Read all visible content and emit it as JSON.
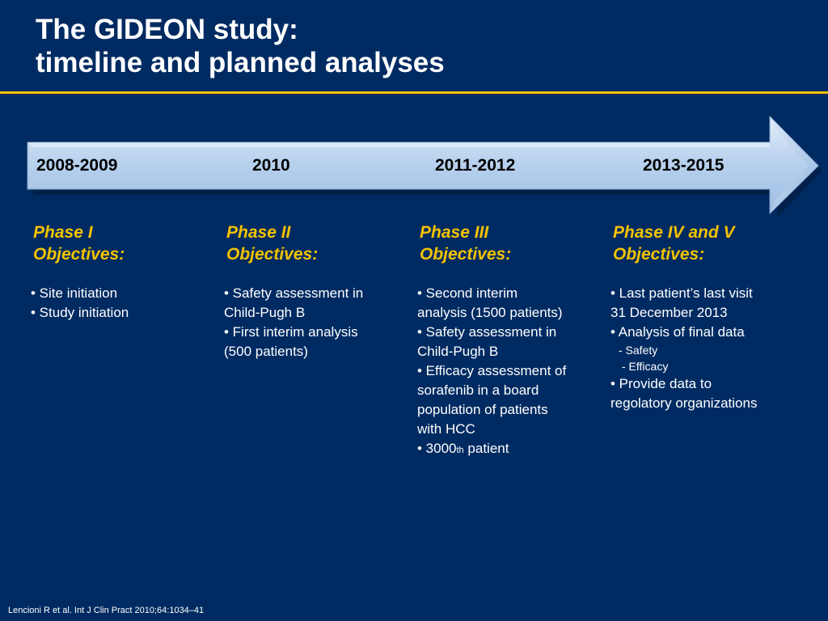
{
  "slide": {
    "title_line1": "The GIDEON study:",
    "title_line2": "timeline and planned analyses",
    "reference": "Lencioni R et al. Int J Clin Pract 2010;64:1034–41"
  },
  "timeline": {
    "years": [
      "2008-2009",
      "2010",
      "2011-2012",
      "2013-2015"
    ]
  },
  "phases": [
    {
      "name": "Phase I",
      "objectives_label": "Objectives:",
      "items": [
        "• Site initiation",
        "• Study initiation"
      ]
    },
    {
      "name": "Phase II",
      "objectives_label": "Objectives:",
      "items": [
        "• Safety assessment in",
        "Child-Pugh B",
        "• First interim analysis",
        "(500 patients)"
      ]
    },
    {
      "name": "Phase III",
      "objectives_label": "Objectives:",
      "items": [
        "• Second interim",
        "analysis (1500 patients)",
        "• Safety assessment in",
        "Child-Pugh B",
        "• Efficacy assessment of",
        "sorafenib in a board",
        "population of patients",
        "with HCC"
      ],
      "last_item_prefix": "• 3000",
      "last_item_sup": "th",
      "last_item_suffix": " patient"
    },
    {
      "name": "Phase IV and V",
      "objectives_label": "Objectives:",
      "items": [
        "• Last patient’s last visit",
        "31 December 2013",
        "• Analysis of final data"
      ],
      "subitems": [
        "-  Safety",
        "- Efficacy"
      ],
      "items_after": [
        "• Provide data to",
        "regolatory organizations"
      ]
    }
  ],
  "colors": {
    "background": "#002b62",
    "accent": "#f2c200",
    "arrow": "#b9d2ee"
  }
}
